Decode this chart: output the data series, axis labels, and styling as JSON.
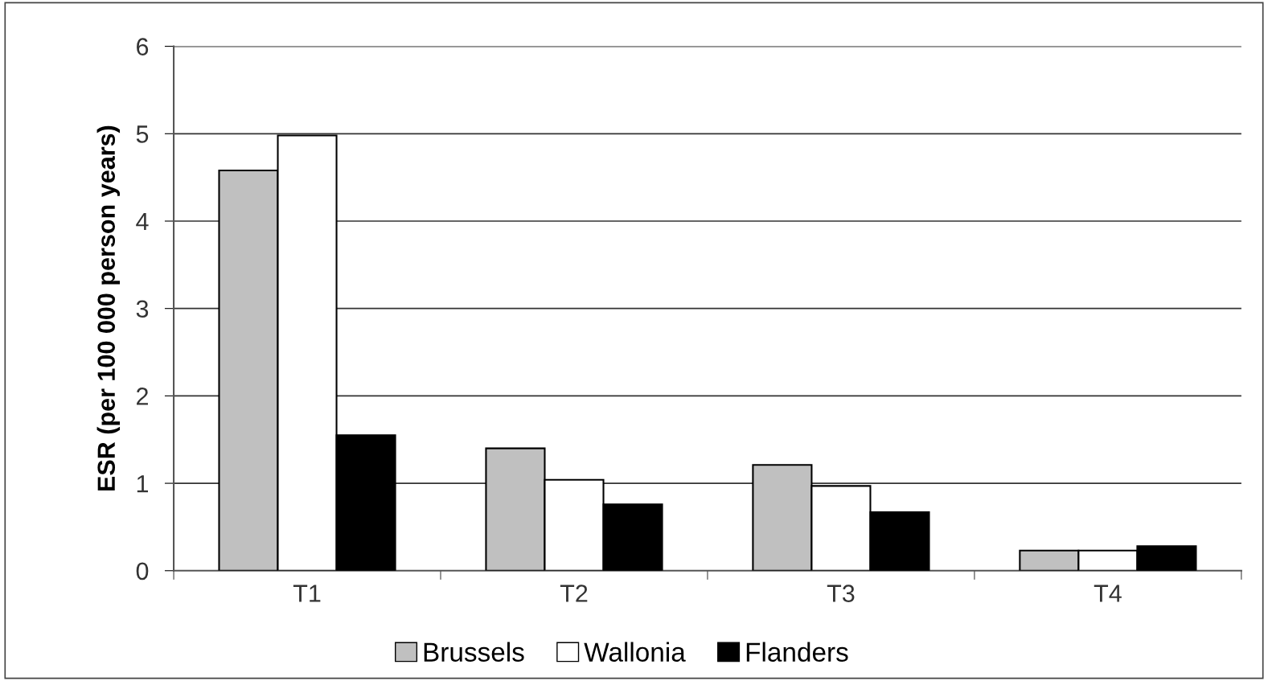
{
  "chart_data": {
    "type": "bar",
    "ylabel": "ESR (per 100 000 person years)",
    "categories": [
      "T1",
      "T2",
      "T3",
      "T4"
    ],
    "series": [
      {
        "name": "Brussels",
        "color": "#c0c0c0",
        "values": [
          4.58,
          1.4,
          1.21,
          0.23
        ]
      },
      {
        "name": "Wallonia",
        "color": "#ffffff",
        "values": [
          4.98,
          1.04,
          0.97,
          0.23
        ]
      },
      {
        "name": "Flanders",
        "color": "#000000",
        "values": [
          1.55,
          0.76,
          0.67,
          0.28
        ]
      }
    ],
    "ylim": [
      0,
      6
    ],
    "yticks": [
      0,
      1,
      2,
      3,
      4,
      5,
      6
    ],
    "grid": "y",
    "legend": "bottom"
  }
}
